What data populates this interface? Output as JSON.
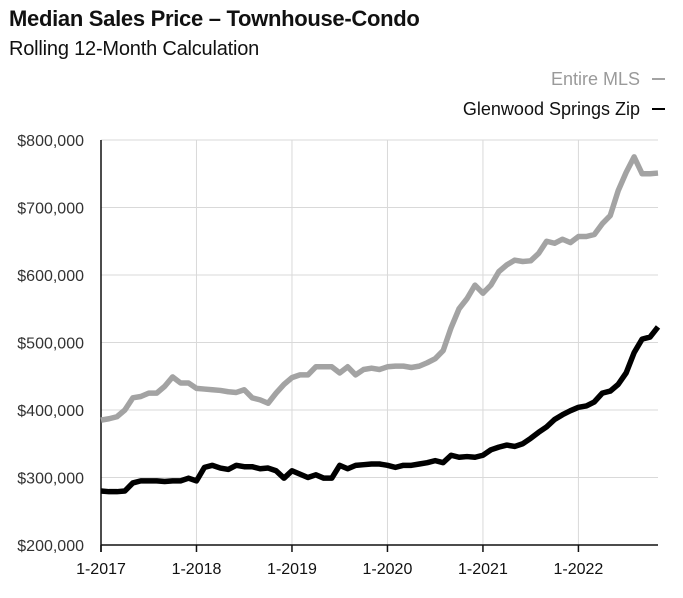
{
  "header": {
    "title": "Median Sales Price – Townhouse-Condo",
    "subtitle": "Rolling 12-Month Calculation"
  },
  "colors": {
    "entire_mls": "#a3a3a3",
    "glenwood": "#000000",
    "axis": "#111111",
    "grid": "#d9d9d9"
  },
  "chart_data": {
    "type": "line",
    "title": "Median Sales Price – Townhouse-Condo",
    "subtitle": "Rolling 12-Month Calculation",
    "xlabel": "",
    "ylabel": "",
    "ylim": [
      200000,
      800000
    ],
    "yticks": [
      200000,
      300000,
      400000,
      500000,
      600000,
      700000,
      800000
    ],
    "ytick_labels": [
      "$200,000",
      "$300,000",
      "$400,000",
      "$500,000",
      "$600,000",
      "$700,000",
      "$800,000"
    ],
    "xlim": [
      0,
      70
    ],
    "xticks": [
      0,
      12,
      24,
      36,
      48,
      60
    ],
    "xtick_labels": [
      "1-2017",
      "1-2018",
      "1-2019",
      "1-2020",
      "1-2021",
      "1-2022"
    ],
    "legend_position": "top-right",
    "series": [
      {
        "name": "Entire MLS",
        "legend_label": "Entire MLS",
        "legend_symbol": "—",
        "color": "#a3a3a3",
        "values": [
          385000,
          387000,
          390000,
          400000,
          418000,
          420000,
          425000,
          425000,
          435000,
          449000,
          440000,
          440000,
          432000,
          431000,
          430000,
          429000,
          427000,
          426000,
          430000,
          418000,
          415000,
          410000,
          425000,
          438000,
          448000,
          452000,
          452000,
          464000,
          464000,
          464000,
          455000,
          464000,
          452000,
          460000,
          462000,
          460000,
          464000,
          465000,
          465000,
          463000,
          465000,
          470000,
          476000,
          488000,
          522000,
          550000,
          565000,
          585000,
          573000,
          585000,
          605000,
          615000,
          622000,
          620000,
          621000,
          632000,
          650000,
          647000,
          653000,
          648000,
          657000,
          657000,
          660000,
          676000,
          688000,
          725000,
          752000,
          775000,
          750000,
          750000,
          751000
        ]
      },
      {
        "name": "Glenwood Springs Zip",
        "legend_label": "Glenwood Springs Zip",
        "legend_symbol": "—",
        "color": "#000000",
        "values": [
          280000,
          279000,
          279000,
          280000,
          292000,
          295000,
          295000,
          295000,
          294000,
          295000,
          295000,
          299000,
          295000,
          315000,
          318000,
          314000,
          312000,
          318000,
          316000,
          316000,
          313000,
          314000,
          310000,
          299000,
          310000,
          305000,
          300000,
          304000,
          299000,
          299000,
          318000,
          313000,
          318000,
          319000,
          320000,
          320000,
          318000,
          315000,
          318000,
          318000,
          320000,
          322000,
          325000,
          322000,
          333000,
          330000,
          331000,
          330000,
          333000,
          341000,
          345000,
          348000,
          346000,
          350000,
          358000,
          367000,
          375000,
          386000,
          393000,
          399000,
          404000,
          406000,
          412000,
          425000,
          428000,
          438000,
          455000,
          485000,
          505000,
          508000,
          523000
        ]
      }
    ]
  }
}
